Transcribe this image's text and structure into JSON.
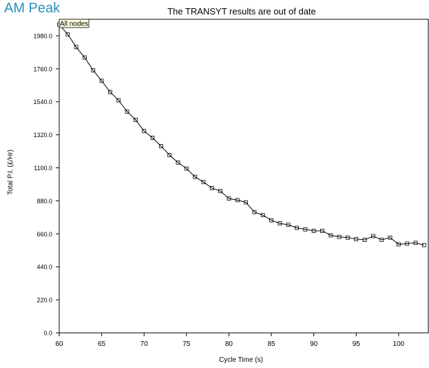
{
  "header": {
    "view_title": "AM Peak"
  },
  "chart_data": {
    "type": "line",
    "title": "The TRANSYT results are out of date",
    "xlabel": "Cycle Time (s)",
    "ylabel": "Total P.I. (£/Hr)",
    "legend": "All nodes",
    "legend_position": "top-left",
    "grid": false,
    "xlim": [
      60,
      103.5
    ],
    "ylim": [
      0,
      2090
    ],
    "x_ticks": [
      60,
      65,
      70,
      75,
      80,
      85,
      90,
      95,
      100
    ],
    "x_tick_labels": [
      "60",
      "65",
      "70",
      "75",
      "80",
      "85",
      "90",
      "95",
      "100"
    ],
    "y_ticks": [
      0,
      220,
      440,
      660,
      880,
      1100,
      1320,
      1540,
      1760,
      1980
    ],
    "y_tick_labels": [
      "0.0",
      "220.0",
      "440.0",
      "660.0",
      "880.0",
      "1100.0",
      "1320.0",
      "1540.0",
      "1760.0",
      "1980.0"
    ],
    "series": [
      {
        "name": "All nodes",
        "color": "#000000",
        "marker": "square",
        "x": [
          60,
          61,
          62,
          63,
          64,
          65,
          66,
          67,
          68,
          69,
          70,
          71,
          72,
          73,
          74,
          75,
          76,
          77,
          78,
          79,
          80,
          81,
          82,
          83,
          84,
          85,
          86,
          87,
          88,
          89,
          90,
          91,
          92,
          93,
          94,
          95,
          96,
          97,
          98,
          99,
          100,
          101,
          102,
          103
        ],
        "y": [
          2055,
          1990,
          1905,
          1835,
          1750,
          1680,
          1605,
          1550,
          1475,
          1420,
          1345,
          1300,
          1245,
          1185,
          1135,
          1095,
          1040,
          1005,
          965,
          945,
          895,
          885,
          870,
          805,
          785,
          750,
          730,
          720,
          700,
          690,
          680,
          680,
          650,
          640,
          635,
          625,
          620,
          645,
          620,
          635,
          590,
          595,
          600,
          585
        ]
      }
    ]
  }
}
